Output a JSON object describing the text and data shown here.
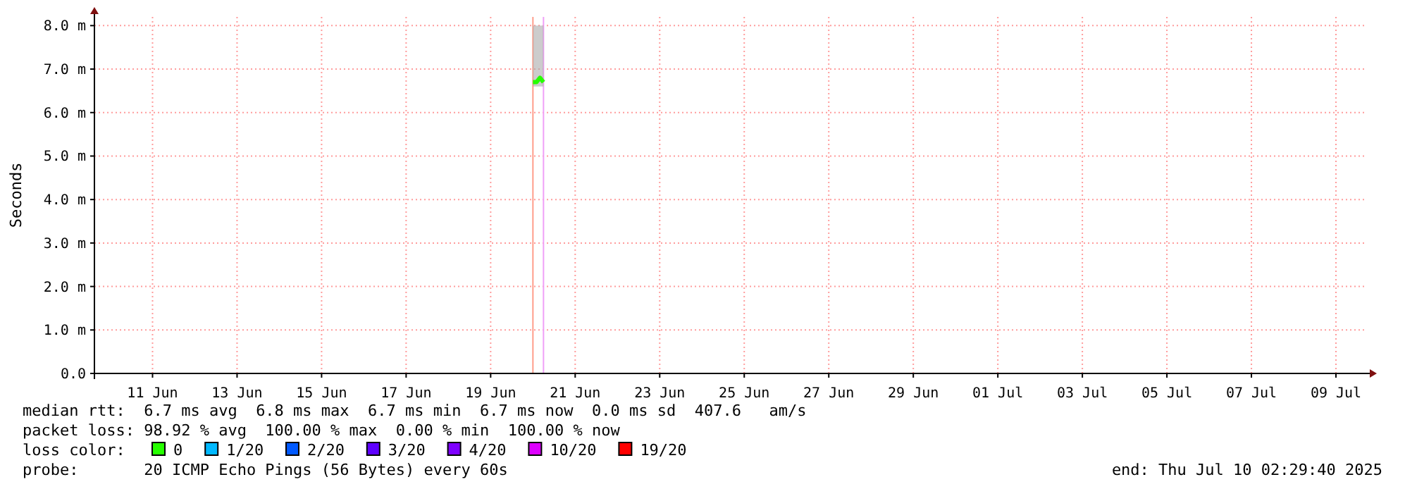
{
  "chart_data": {
    "type": "line",
    "ylabel": "Seconds",
    "xlim": [
      "2025-06-09T15:00",
      "2025-07-09T16:00"
    ],
    "xticks": [
      {
        "value": "2025-06-11",
        "label": "11 Jun"
      },
      {
        "value": "2025-06-13",
        "label": "13 Jun"
      },
      {
        "value": "2025-06-15",
        "label": "15 Jun"
      },
      {
        "value": "2025-06-17",
        "label": "17 Jun"
      },
      {
        "value": "2025-06-19",
        "label": "19 Jun"
      },
      {
        "value": "2025-06-21",
        "label": "21 Jun"
      },
      {
        "value": "2025-06-23",
        "label": "23 Jun"
      },
      {
        "value": "2025-06-25",
        "label": "25 Jun"
      },
      {
        "value": "2025-06-27",
        "label": "27 Jun"
      },
      {
        "value": "2025-06-29",
        "label": "29 Jun"
      },
      {
        "value": "2025-07-01",
        "label": "01 Jul"
      },
      {
        "value": "2025-07-03",
        "label": "03 Jul"
      },
      {
        "value": "2025-07-05",
        "label": "05 Jul"
      },
      {
        "value": "2025-07-07",
        "label": "07 Jul"
      },
      {
        "value": "2025-07-09",
        "label": "09 Jul"
      }
    ],
    "ylim": [
      0,
      8.2
    ],
    "yticks": [
      {
        "value": 0,
        "label": "0.0"
      },
      {
        "value": 1,
        "label": "1.0 m"
      },
      {
        "value": 2,
        "label": "2.0 m"
      },
      {
        "value": 3,
        "label": "3.0 m"
      },
      {
        "value": 4,
        "label": "4.0 m"
      },
      {
        "value": 5,
        "label": "5.0 m"
      },
      {
        "value": 6,
        "label": "6.0 m"
      },
      {
        "value": 7,
        "label": "7.0 m"
      },
      {
        "value": 8,
        "label": "8.0 m"
      }
    ],
    "grid": true,
    "legend": "bottom",
    "legend_title": "loss color:",
    "series": [
      {
        "name": "0",
        "color": "#26ff00",
        "x": [
          "2025-06-20T00:00",
          "2025-06-20T02:00",
          "2025-06-20T04:00",
          "2025-06-20T06:00"
        ],
        "values": [
          6.7,
          6.7,
          6.8,
          6.7
        ],
        "lower": [
          6.6,
          6.6,
          6.6,
          6.6
        ],
        "upper": [
          8,
          8,
          8,
          8
        ]
      },
      {
        "name": "1/20",
        "color": "#00b8ff",
        "values": [
          null
        ]
      },
      {
        "name": "2/20",
        "color": "#0059ff",
        "values": [
          null
        ]
      },
      {
        "name": "3/20",
        "color": "#5e00ff",
        "values": [
          null
        ]
      },
      {
        "name": "4/20",
        "color": "#7e00ff",
        "values": [
          null
        ]
      },
      {
        "name": "10/20",
        "color": "#dd00ff",
        "values": [
          null
        ]
      },
      {
        "name": "19/20",
        "color": "#ff0000",
        "values": [
          null
        ]
      }
    ],
    "ref_lines": [
      {
        "axis": "x",
        "value": "2025-06-20T00:00",
        "color": "#ff9d8a"
      },
      {
        "axis": "x",
        "value": "2025-06-20T06:00",
        "color": "#f0a0f8"
      }
    ],
    "annotations": [
      "median rtt:  6.7 ms avg  6.8 ms max  6.7 ms min  6.7 ms now  0.0 ms sd  407.6   am/s",
      "packet loss: 98.92 % avg  100.00 % max  0.00 % min  100.00 % now",
      "probe:       20 ICMP Echo Pings (56 Bytes) every 60s",
      "end: Thu Jul 10 02:29:40 2025"
    ]
  }
}
